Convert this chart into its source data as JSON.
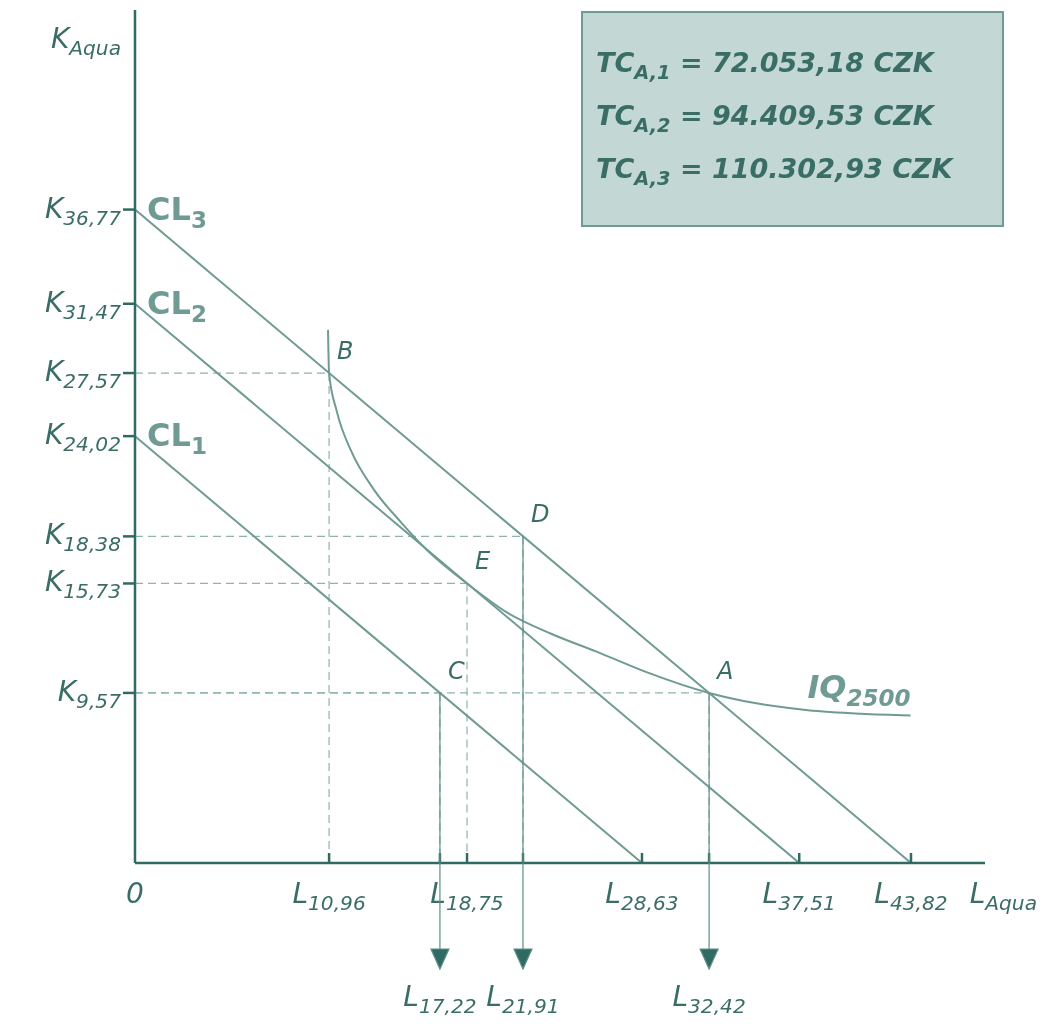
{
  "chart_data": {
    "type": "line",
    "xlabel": "L$_{Aqua}$",
    "ylabel": "K$_{Aqua}$",
    "xlim": [
      0,
      48
    ],
    "ylim": [
      0,
      48
    ],
    "xticks": [
      {
        "value": 0,
        "label": "0"
      },
      {
        "value": 10.96,
        "label": "L$_{10,96}$"
      },
      {
        "value": 18.75,
        "label": "L$_{18,75}$"
      },
      {
        "value": 28.63,
        "label": "L$_{28,63}$"
      },
      {
        "value": 37.51,
        "label": "L$_{37,51}$"
      },
      {
        "value": 43.82,
        "label": "L$_{43,82}$"
      },
      {
        "value": 17.22,
        "label": null
      },
      {
        "value": 21.91,
        "label": null
      },
      {
        "value": 32.42,
        "label": null
      }
    ],
    "yticks": [
      {
        "value": 9.57,
        "label": "K$_{9,57}$"
      },
      {
        "value": 15.73,
        "label": "K$_{15,73}$"
      },
      {
        "value": 18.38,
        "label": "K$_{18,38}$"
      },
      {
        "value": 24.02,
        "label": "K$_{24,02}$"
      },
      {
        "value": 27.57,
        "label": "K$_{27,57}$"
      },
      {
        "value": 31.47,
        "label": "K$_{31,47}$"
      },
      {
        "value": 36.77,
        "label": "K$_{36,77}$"
      }
    ],
    "series": [
      {
        "name": "CL$_{3}$",
        "color": "#6f9b94",
        "x": [
          0,
          43.82
        ],
        "values": [
          36.77,
          0
        ]
      },
      {
        "name": "CL$_{2}$",
        "color": "#6f9b94",
        "x": [
          0,
          37.51
        ],
        "values": [
          31.47,
          0
        ]
      },
      {
        "name": "CL$_{1}$",
        "color": "#6f9b94",
        "x": [
          0,
          28.63
        ],
        "values": [
          24.02,
          0
        ]
      },
      {
        "name": "IQ$_{2500}$",
        "color": "#6f9b94",
        "x": [
          43.8,
          41,
          38,
          35,
          32.42,
          29,
          26.3,
          23.5,
          21,
          18.75,
          16.5,
          15,
          13.5,
          12.2,
          11.4,
          10.96,
          10.9
        ],
        "values": [
          8.3,
          8.4,
          8.6,
          9.0,
          9.57,
          10.7,
          11.8,
          12.9,
          14.1,
          15.73,
          17.6,
          19.2,
          21.0,
          23.2,
          25.4,
          27.57,
          30
        ]
      }
    ],
    "annotations": [
      {
        "text": "B",
        "x": 10.96,
        "y": 27.57
      },
      {
        "text": "D",
        "x": 21.91,
        "y": 18.38
      },
      {
        "text": "E",
        "x": 18.75,
        "y": 15.73
      },
      {
        "text": "C",
        "x": 17.22,
        "y": 9.57
      },
      {
        "text": "A",
        "x": 32.42,
        "y": 9.57
      },
      {
        "text": "L$_{17,22}$",
        "x": 17.22,
        "y": 9.57
      },
      {
        "text": "L$_{21,91}$",
        "x": 21.91,
        "y": 18.38
      },
      {
        "text": "L$_{32,42}$",
        "x": 32.42,
        "y": 9.57
      },
      "TC$_{A,1}$ = 72.053,18 CZK",
      "TC$_{A,2}$ = 94.409,53 CZK",
      "TC$_{A,3}$ = 110.302,93 CZK"
    ]
  }
}
